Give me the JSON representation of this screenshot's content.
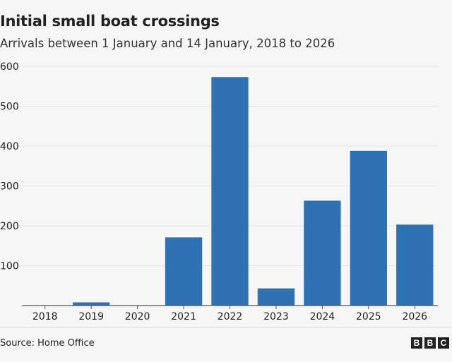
{
  "chart_data": {
    "type": "bar",
    "title": "Initial small boat crossings",
    "subtitle": "Arrivals between 1 January and 14 January, 2018 to 2026",
    "xlabel": "",
    "ylabel": "",
    "categories": [
      "2018",
      "2019",
      "2020",
      "2021",
      "2022",
      "2023",
      "2024",
      "2025",
      "2026"
    ],
    "values": [
      0,
      8,
      0,
      171,
      573,
      43,
      263,
      388,
      203
    ],
    "ylim": [
      0,
      600
    ],
    "yticks": [
      100,
      200,
      300,
      400,
      500,
      600
    ],
    "grid": true,
    "bar_color": "#2e72b3",
    "background": "#f6f6f6"
  },
  "footer": {
    "source": "Source: Home Office",
    "logo": "BBC"
  }
}
